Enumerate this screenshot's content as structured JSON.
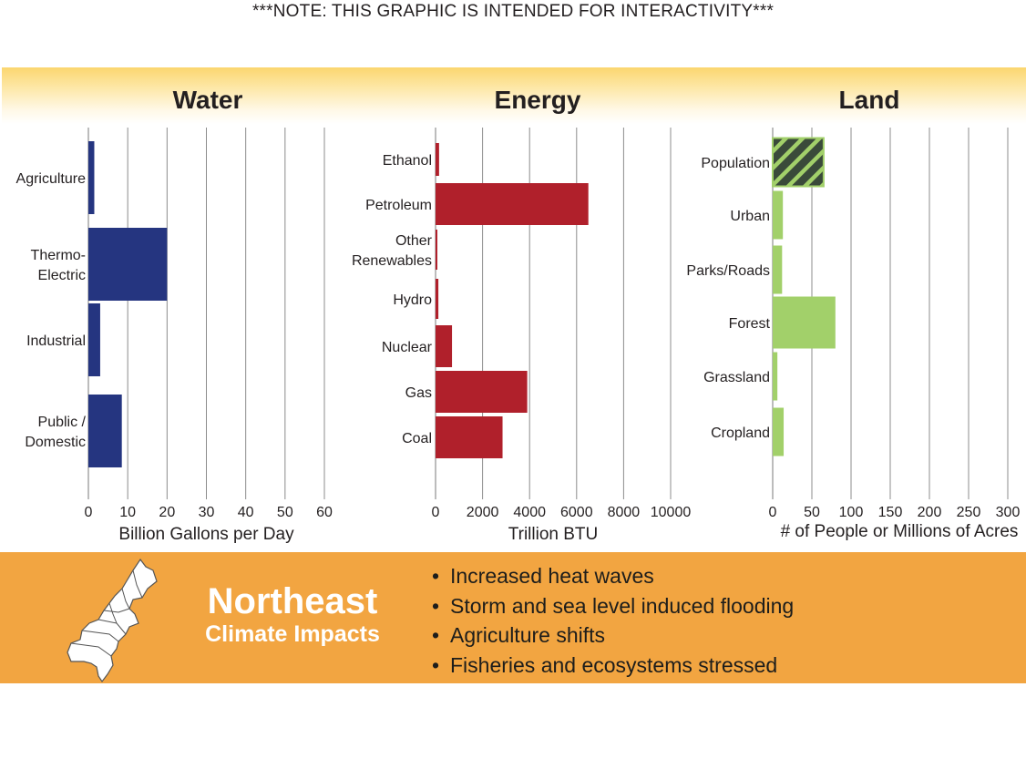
{
  "note": "***NOTE:  THIS GRAPHIC IS INTENDED FOR INTERACTIVITY***",
  "sections": {
    "water": "Water",
    "energy": "Energy",
    "land": "Land"
  },
  "chart_data": [
    {
      "type": "bar",
      "orientation": "horizontal",
      "categories": [
        "Agriculture",
        "Thermo-\nElectric",
        "Industrial",
        "Public /\nDomestic"
      ],
      "values": [
        1.5,
        20,
        3,
        8.5
      ],
      "xlabel": "Billion Gallons per Day",
      "xlim": [
        0,
        60
      ],
      "ticks": [
        "0",
        "10",
        "20",
        "30",
        "40",
        "50",
        "60"
      ],
      "color": "#253580",
      "grid": true
    },
    {
      "type": "bar",
      "orientation": "horizontal",
      "categories": [
        "Ethanol",
        "Petroleum",
        "Other\nRenewables",
        "Hydro",
        "Nuclear",
        "Gas",
        "Coal"
      ],
      "values": [
        150,
        6500,
        50,
        120,
        700,
        3900,
        2850
      ],
      "xlabel": "Trillion BTU",
      "xlim": [
        0,
        10000
      ],
      "ticks": [
        "0",
        "2000",
        "4000",
        "6000",
        "8000",
        "10000"
      ],
      "color": "#b0202b",
      "grid": true
    },
    {
      "type": "bar",
      "orientation": "horizontal",
      "categories": [
        "Population",
        "Urban",
        "Parks/Roads",
        "Forest",
        "Grassland",
        "Cropland"
      ],
      "values": [
        65,
        13,
        12,
        80,
        6,
        14
      ],
      "xlabel": "# of People or Millions of Acres",
      "xlim": [
        0,
        300
      ],
      "ticks": [
        "0",
        "50",
        "100",
        "150",
        "200",
        "250",
        "300"
      ],
      "color": "#a2d06a",
      "highlight": {
        "category": "Population",
        "pattern": "hatched",
        "stroke": "#2a2a2a",
        "fill": "#3a4a3a"
      },
      "grid": true
    }
  ],
  "region": {
    "title": "Northeast",
    "subtitle": "Climate Impacts",
    "map_icon": "northeast-us-map-icon"
  },
  "impacts": [
    "Increased heat waves",
    "Storm and sea level induced flooding",
    "Agriculture shifts",
    "Fisheries and ecosystems stressed"
  ],
  "colors": {
    "water": "#253580",
    "energy": "#b0202b",
    "land": "#a2d06a",
    "footer": "#f2a541",
    "header_gold": "#fbd66f"
  }
}
